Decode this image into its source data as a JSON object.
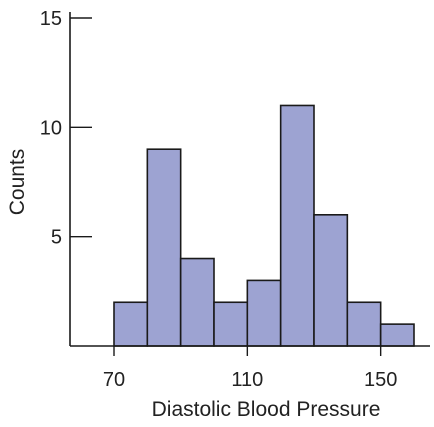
{
  "chart_data": {
    "type": "bar",
    "subtype": "histogram",
    "title": "",
    "xlabel": "Diastolic Blood Pressure",
    "ylabel": "Counts",
    "bin_width": 10,
    "bins": [
      {
        "start": 70,
        "end": 80,
        "count": 2
      },
      {
        "start": 80,
        "end": 90,
        "count": 9
      },
      {
        "start": 90,
        "end": 100,
        "count": 4
      },
      {
        "start": 100,
        "end": 110,
        "count": 2
      },
      {
        "start": 110,
        "end": 120,
        "count": 3
      },
      {
        "start": 120,
        "end": 130,
        "count": 11
      },
      {
        "start": 130,
        "end": 140,
        "count": 6
      },
      {
        "start": 140,
        "end": 150,
        "count": 2
      },
      {
        "start": 150,
        "end": 160,
        "count": 1
      }
    ],
    "xlim": [
      70,
      160
    ],
    "ylim": [
      0,
      15
    ],
    "xticks": [
      70,
      110,
      150
    ],
    "yticks": [
      5,
      10,
      15
    ],
    "colors": {
      "bar_fill": "#9da3d2",
      "bar_stroke": "#1a1a1a",
      "axis": "#1a1a1a"
    },
    "grid": false,
    "legend": "none"
  }
}
